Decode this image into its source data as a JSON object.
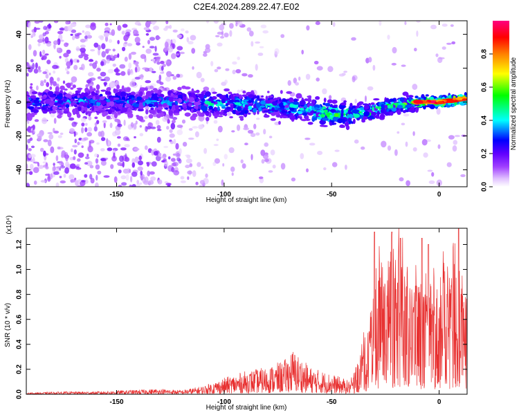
{
  "title": "C2E4.2024.289.22.47.E02",
  "chart_data": [
    {
      "type": "heatmap",
      "name": "spectrogram",
      "xlabel": "Height of straight line (km)",
      "ylabel": "Frequency (Hz)",
      "xlim": [
        -192,
        13
      ],
      "ylim": [
        -50,
        48
      ],
      "x_ticks": [
        -150,
        -100,
        -50,
        0
      ],
      "y_ticks": [
        -40,
        -20,
        0,
        20,
        40
      ],
      "colorbar": {
        "label": "Normalized spectral amplitude",
        "range": [
          0,
          1
        ],
        "ticks": [
          0.0,
          0.2,
          0.4,
          0.6,
          0.8
        ],
        "tick_labels": [
          "0.0",
          "0.2",
          "0.4",
          "0.6",
          "0.8"
        ],
        "colors": [
          "#ffffff",
          "#e0c0ff",
          "#a040ff",
          "#6000ff",
          "#0000ff",
          "#00ffff",
          "#00ff00",
          "#ffff00",
          "#ff8000",
          "#ff0000",
          "#ff0080"
        ]
      },
      "ridge": [
        [
          -190,
          0
        ],
        [
          -150,
          0
        ],
        [
          -120,
          0
        ],
        [
          -100,
          -1
        ],
        [
          -80,
          -2
        ],
        [
          -70,
          -3
        ],
        [
          -60,
          -5
        ],
        [
          -50,
          -7
        ],
        [
          -40,
          -7
        ],
        [
          -30,
          -5
        ],
        [
          -20,
          -2
        ],
        [
          -10,
          0
        ],
        [
          0,
          0
        ],
        [
          13,
          2
        ]
      ]
    },
    {
      "type": "line",
      "name": "snr",
      "xlabel": "Height of straight line (km)",
      "ylabel": "SNR (10 * v/v)",
      "y_exponent": "(x10⁴)",
      "xlim": [
        -192,
        13
      ],
      "ylim": [
        0,
        1.33
      ],
      "x_ticks": [
        -150,
        -100,
        -50,
        0
      ],
      "y_ticks": [
        0.0,
        0.2,
        0.4,
        0.6,
        0.8,
        1.0,
        1.2
      ],
      "y_tick_labels": [
        "0.0",
        "0.2",
        "0.4",
        "0.6",
        "0.8",
        "1.0",
        "1.2"
      ],
      "color": "#e83030",
      "envelope": [
        [
          -192,
          0.01
        ],
        [
          -175,
          0.02
        ],
        [
          -160,
          0.02
        ],
        [
          -145,
          0.03
        ],
        [
          -130,
          0.04
        ],
        [
          -120,
          0.03
        ],
        [
          -110,
          0.06
        ],
        [
          -100,
          0.12
        ],
        [
          -90,
          0.17
        ],
        [
          -80,
          0.2
        ],
        [
          -72,
          0.25
        ],
        [
          -68,
          0.33
        ],
        [
          -60,
          0.2
        ],
        [
          -50,
          0.15
        ],
        [
          -42,
          0.1
        ],
        [
          -38,
          0.18
        ],
        [
          -35,
          0.4
        ],
        [
          -31,
          0.55
        ],
        [
          -28,
          0.9
        ],
        [
          -25,
          0.8
        ],
        [
          -22,
          0.95
        ],
        [
          -18,
          1.05
        ],
        [
          -15,
          0.85
        ],
        [
          -12,
          0.8
        ],
        [
          -9,
          0.85
        ],
        [
          -5,
          0.7
        ],
        [
          -2,
          0.8
        ],
        [
          2,
          0.85
        ],
        [
          5,
          0.85
        ],
        [
          8,
          1.0
        ],
        [
          10,
          0.8
        ],
        [
          13,
          0.7
        ]
      ],
      "peaks": [
        [
          -30,
          1.3
        ],
        [
          -22,
          1.3
        ],
        [
          -18,
          1.25
        ],
        [
          -8,
          1.25
        ],
        [
          -5,
          1.2
        ],
        [
          9,
          1.33
        ]
      ]
    }
  ]
}
